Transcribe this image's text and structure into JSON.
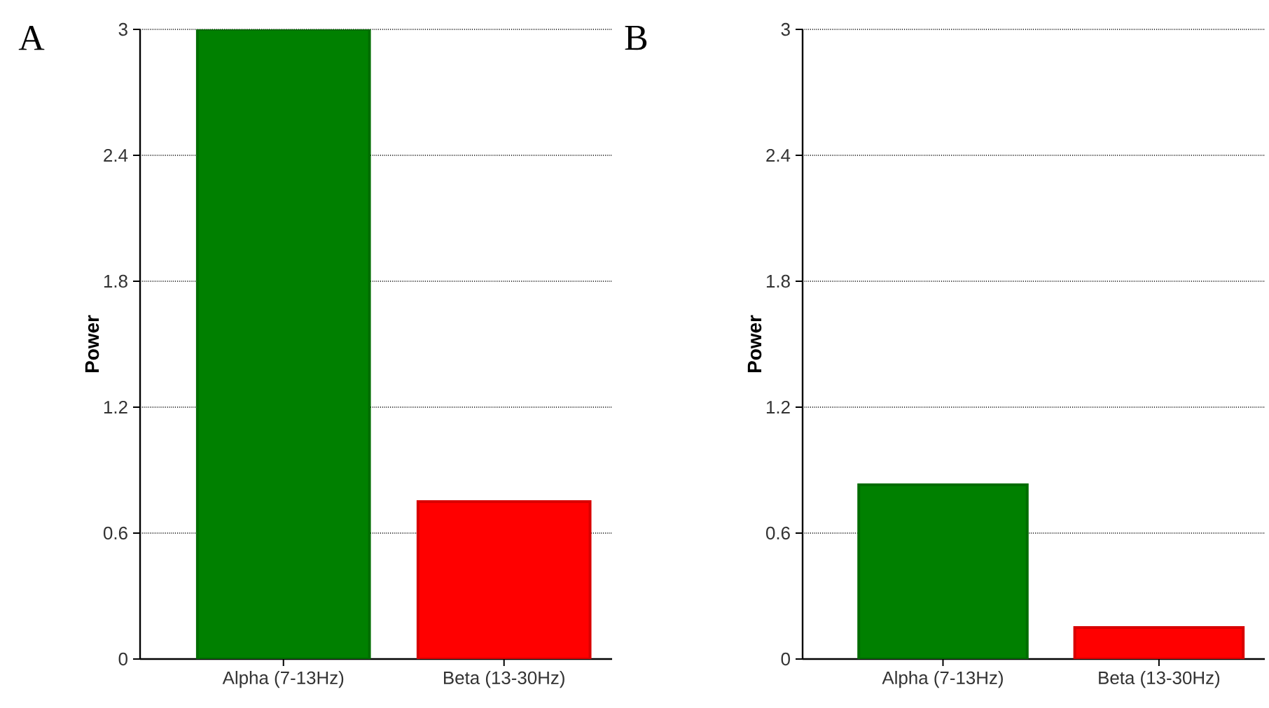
{
  "chart_data": [
    {
      "type": "bar",
      "title": "A",
      "ylabel": "Power",
      "categories": [
        "Alpha (7-13Hz)",
        "Beta (13-30Hz)"
      ],
      "values": [
        3.0,
        0.75
      ],
      "colors": [
        "#008000",
        "#ff0000"
      ],
      "ylim": [
        0,
        3
      ],
      "yticks": [
        0,
        0.6,
        1.2,
        1.8,
        2.4,
        3
      ],
      "grid": "y"
    },
    {
      "type": "bar",
      "title": "B",
      "ylabel": "Power",
      "categories": [
        "Alpha (7-13Hz)",
        "Beta (13-30Hz)"
      ],
      "values": [
        0.83,
        0.15
      ],
      "colors": [
        "#008000",
        "#ff0000"
      ],
      "ylim": [
        0,
        3
      ],
      "yticks": [
        0,
        0.6,
        1.2,
        1.8,
        2.4,
        3
      ],
      "grid": "y"
    }
  ]
}
